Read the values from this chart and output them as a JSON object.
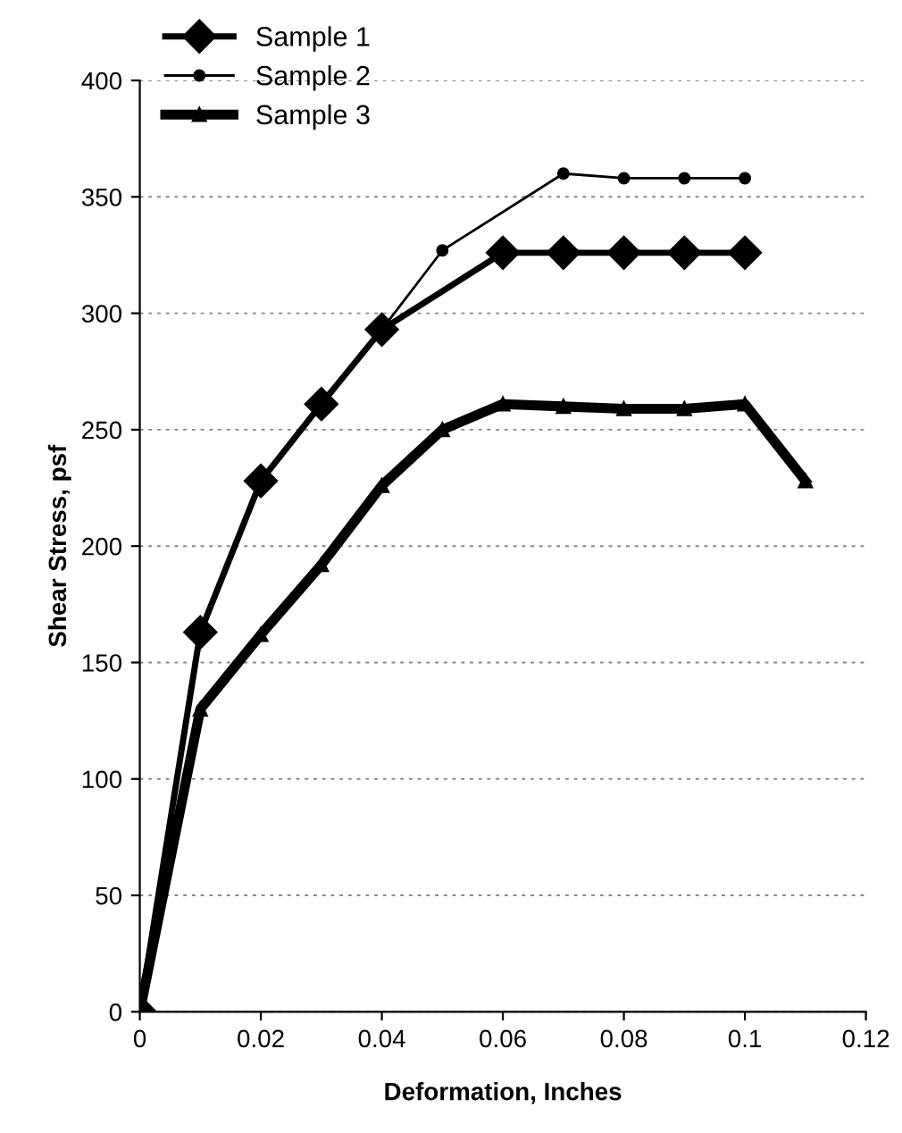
{
  "chart_data": {
    "type": "line",
    "xlabel": "Deformation, Inches",
    "ylabel": "Shear Stress, psf",
    "xlim": [
      0,
      0.12
    ],
    "xticks": [
      0,
      0.02,
      0.04,
      0.06,
      0.08,
      0.1,
      0.12
    ],
    "ylim": [
      0,
      400
    ],
    "yticks": [
      0,
      50,
      100,
      150,
      200,
      250,
      300,
      350,
      400
    ],
    "grid": "y",
    "legend": "top left",
    "line_style": "solid",
    "series": [
      {
        "name": "Sample 1",
        "color": "#000000",
        "marker": "diamond",
        "x": [
          0,
          0.01,
          0.02,
          0.03,
          0.04,
          0.06,
          0.07,
          0.08,
          0.09,
          0.1
        ],
        "values": [
          0,
          163,
          228,
          261,
          293,
          326,
          326,
          326,
          326,
          326
        ]
      },
      {
        "name": "Sample 2",
        "color": "#000000",
        "marker": "circle",
        "x": [
          0,
          0.01,
          0.02,
          0.03,
          0.04,
          0.05,
          0.07,
          0.08,
          0.09,
          0.1
        ],
        "values": [
          0,
          163,
          228,
          261,
          293,
          327,
          360,
          358,
          358,
          358
        ]
      },
      {
        "name": "Sample 3",
        "color": "#000000",
        "marker": "triangle",
        "x": [
          0,
          0.01,
          0.02,
          0.03,
          0.04,
          0.05,
          0.06,
          0.07,
          0.08,
          0.09,
          0.1,
          0.11
        ],
        "values": [
          0,
          130,
          162,
          192,
          226,
          250,
          261,
          260,
          259,
          259,
          261,
          228
        ]
      }
    ]
  }
}
